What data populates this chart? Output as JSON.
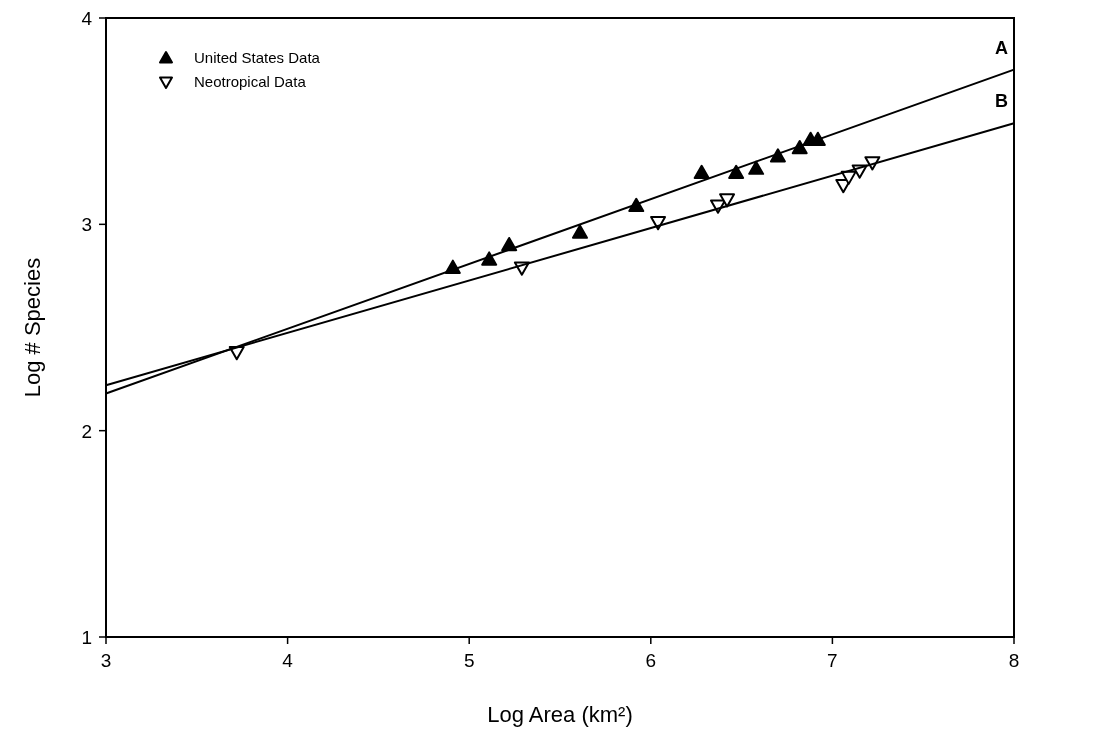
{
  "chart_data": {
    "type": "scatter",
    "xlabel": "Log Area (km²)",
    "ylabel": "Log # Species",
    "xlim": [
      3,
      8
    ],
    "ylim": [
      1,
      4
    ],
    "xticks": [
      3,
      4,
      5,
      6,
      7,
      8
    ],
    "yticks": [
      1,
      2,
      3,
      4
    ],
    "grid": false,
    "legend": "top left",
    "series": [
      {
        "name": "United States Data",
        "marker": "triangle",
        "color": "#000000",
        "x": [
          4.91,
          5.11,
          5.22,
          5.61,
          5.92,
          6.28,
          6.47,
          6.58,
          6.7,
          6.82,
          6.88,
          6.92
        ],
        "values": [
          2.79,
          2.83,
          2.9,
          2.96,
          3.09,
          3.25,
          3.25,
          3.27,
          3.33,
          3.37,
          3.41,
          3.41
        ]
      },
      {
        "name": "Neotropical Data",
        "marker": "triangle-down",
        "color": "#ffffff",
        "x": [
          3.72,
          5.29,
          6.04,
          6.37,
          6.42,
          7.06,
          7.09,
          7.15,
          7.22
        ],
        "values": [
          2.38,
          2.79,
          3.01,
          3.09,
          3.12,
          3.19,
          3.23,
          3.26,
          3.3
        ]
      },
      {
        "name": "A",
        "type": "line",
        "color": "#000000",
        "x": [
          3,
          8
        ],
        "values": [
          2.18,
          3.75
        ]
      },
      {
        "name": "B",
        "type": "line",
        "color": "#000000",
        "x": [
          3,
          8
        ],
        "values": [
          2.22,
          3.49
        ]
      }
    ]
  }
}
